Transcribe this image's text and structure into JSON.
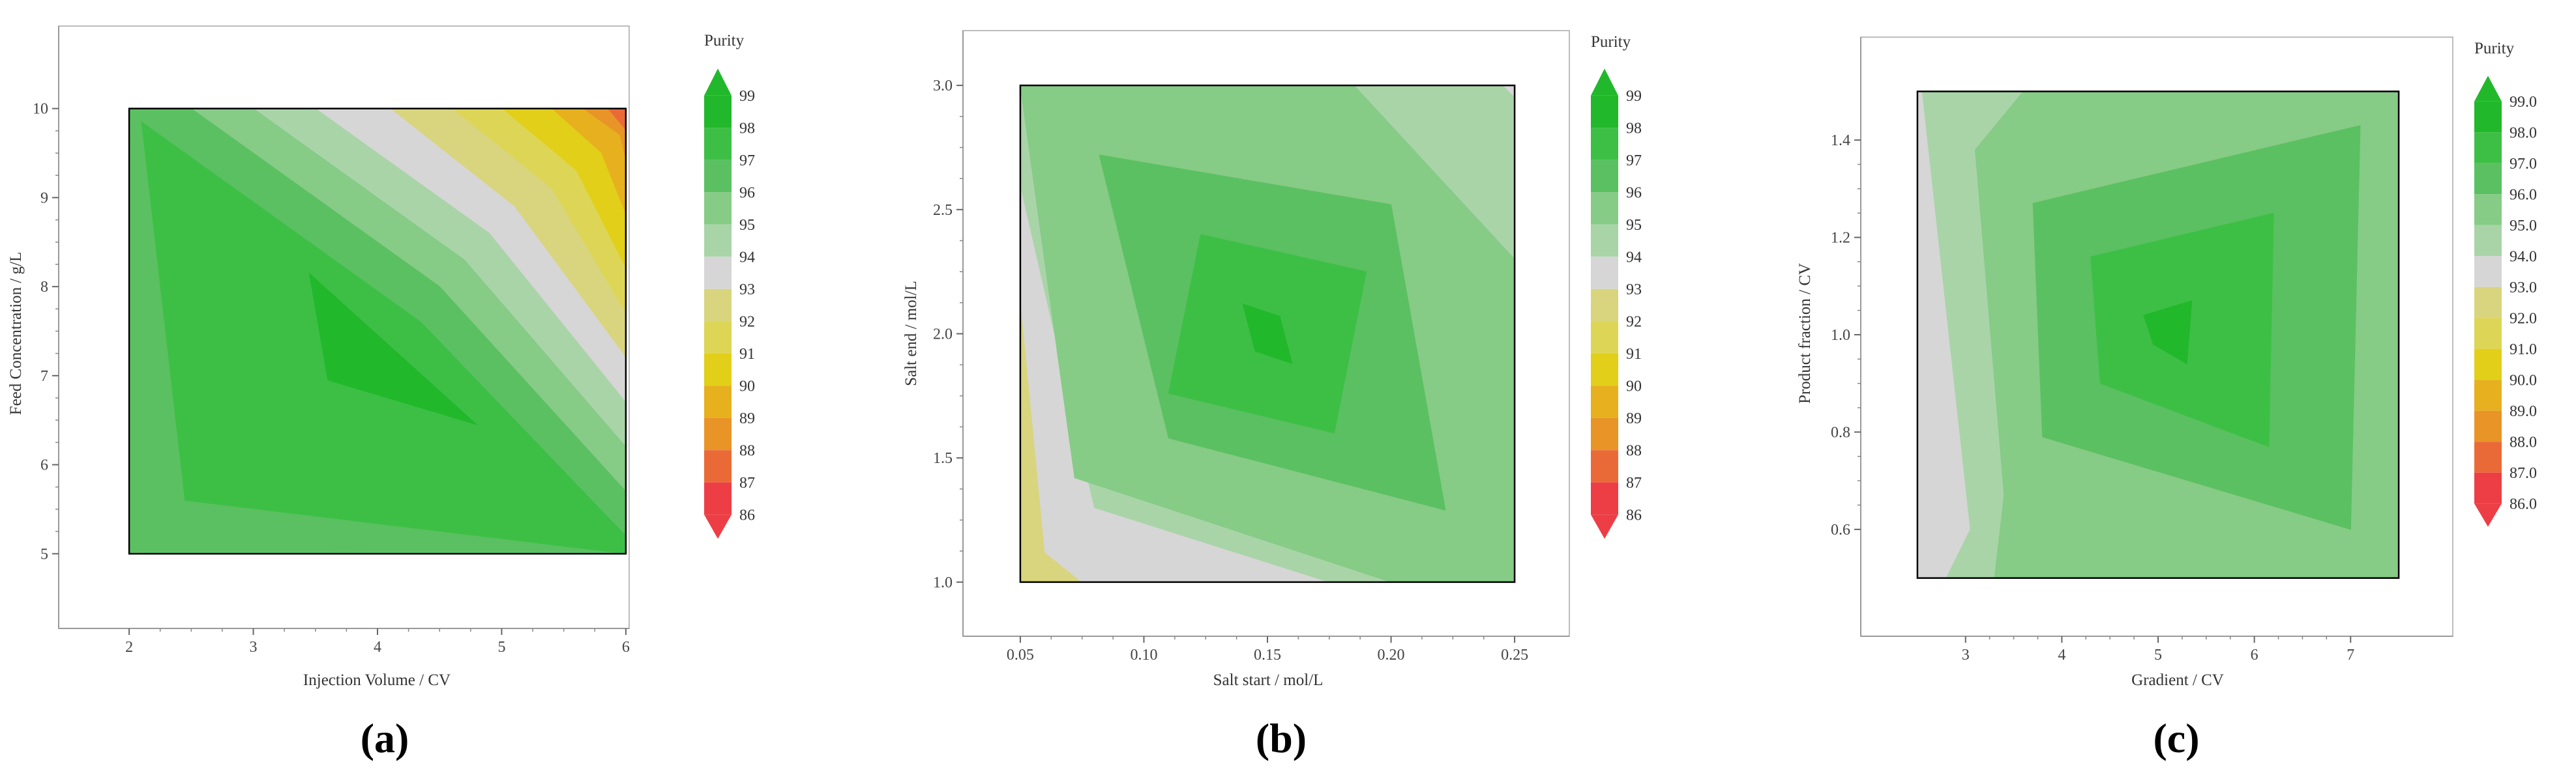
{
  "chart_data": [
    {
      "type": "contour",
      "panel_label": "(a)",
      "xlabel": "Injection Volume / CV",
      "ylabel": "Feed Concentration / g/L",
      "x_ticks": [
        "2",
        "3",
        "4",
        "5",
        "6"
      ],
      "y_ticks": [
        "5",
        "6",
        "7",
        "8",
        "9",
        "10"
      ],
      "xlim": [
        1.8,
        6.2
      ],
      "ylim": [
        4.6,
        10.4
      ],
      "data_region": {
        "x": [
          2,
          6
        ],
        "y": [
          5,
          10
        ]
      },
      "legend_title": "Purity",
      "legend_ticks": [
        "99",
        "98",
        "97",
        "96",
        "95",
        "94",
        "93",
        "92",
        "91",
        "90",
        "89",
        "88",
        "87",
        "86"
      ],
      "max_point": {
        "x": 4.0,
        "y": 7.2,
        "purity": 98.3
      },
      "contour_bands": [
        {
          "level": 98,
          "polygon": [
            [
              3.45,
              8.15
            ],
            [
              4.8,
              6.45
            ],
            [
              3.6,
              6.95
            ]
          ]
        },
        {
          "level": 97,
          "polygon": [
            [
              2.1,
              9.85
            ],
            [
              4.35,
              7.6
            ],
            [
              6.0,
              5.2
            ],
            [
              6.0,
              5.0
            ],
            [
              2.45,
              5.6
            ]
          ]
        },
        {
          "level": 96,
          "polygon": [
            [
              2,
              10
            ],
            [
              2.5,
              10
            ],
            [
              4.5,
              8
            ],
            [
              6.0,
              5.7
            ],
            [
              6.0,
              5.2
            ],
            [
              4.5,
              7.3
            ],
            [
              2.1,
              9.85
            ],
            [
              2.45,
              5.6
            ],
            [
              6.0,
              5.0
            ],
            [
              4.0,
              5.0
            ],
            [
              2.0,
              5.2
            ]
          ]
        },
        {
          "level": 95,
          "polygon": [
            [
              2.5,
              10
            ],
            [
              3.0,
              10
            ],
            [
              4.7,
              8.3
            ],
            [
              6.0,
              6.2
            ],
            [
              6.0,
              5.7
            ],
            [
              4.5,
              8
            ]
          ]
        },
        {
          "level": 94,
          "polygon": [
            [
              3.0,
              10
            ],
            [
              3.5,
              10
            ],
            [
              4.9,
              8.6
            ],
            [
              6.0,
              6.7
            ],
            [
              6.0,
              6.2
            ],
            [
              4.7,
              8.3
            ]
          ]
        },
        {
          "level": 93,
          "polygon": [
            [
              3.5,
              10
            ],
            [
              4.1,
              10
            ],
            [
              5.1,
              8.9
            ],
            [
              6.0,
              7.2
            ],
            [
              6.0,
              6.7
            ],
            [
              4.9,
              8.6
            ]
          ]
        },
        {
          "level": 92,
          "polygon": [
            [
              4.1,
              10
            ],
            [
              4.6,
              10
            ],
            [
              5.4,
              9.1
            ],
            [
              6.0,
              7.7
            ],
            [
              6.0,
              7.2
            ],
            [
              5.1,
              8.9
            ]
          ]
        },
        {
          "level": 91,
          "polygon": [
            [
              4.6,
              10
            ],
            [
              5.0,
              10
            ],
            [
              5.6,
              9.3
            ],
            [
              6.0,
              8.2
            ],
            [
              6.0,
              7.7
            ],
            [
              5.4,
              9.1
            ]
          ]
        },
        {
          "level": 90,
          "polygon": [
            [
              5.0,
              10
            ],
            [
              5.4,
              10
            ],
            [
              5.8,
              9.5
            ],
            [
              6.0,
              8.8
            ],
            [
              6.0,
              8.2
            ],
            [
              5.6,
              9.3
            ]
          ]
        },
        {
          "level": 89,
          "polygon": [
            [
              5.4,
              10
            ],
            [
              5.65,
              10
            ],
            [
              5.95,
              9.7
            ],
            [
              6.0,
              9.4
            ],
            [
              6.0,
              8.8
            ],
            [
              5.8,
              9.5
            ]
          ]
        },
        {
          "level": 88,
          "polygon": [
            [
              5.65,
              10
            ],
            [
              5.85,
              10
            ],
            [
              6.0,
              9.75
            ],
            [
              6.0,
              9.4
            ],
            [
              5.95,
              9.7
            ]
          ]
        },
        {
          "level": 87,
          "polygon": [
            [
              5.85,
              10
            ],
            [
              6.0,
              10
            ],
            [
              6.0,
              9.75
            ]
          ]
        }
      ]
    },
    {
      "type": "contour",
      "panel_label": "(b)",
      "xlabel": "Salt start / mol/L",
      "ylabel": "Salt end / mol/L",
      "x_ticks": [
        "0.05",
        "0.10",
        "0.15",
        "0.20",
        "0.25"
      ],
      "y_ticks": [
        "1.0",
        "1.5",
        "2.0",
        "2.5",
        "3.0"
      ],
      "xlim": [
        0.04,
        0.26
      ],
      "ylim": [
        0.9,
        3.1
      ],
      "data_region": {
        "x": [
          0.05,
          0.25
        ],
        "y": [
          1.0,
          3.0
        ]
      },
      "legend_title": "Purity",
      "legend_ticks": [
        "99",
        "98",
        "97",
        "96",
        "95",
        "94",
        "93",
        "92",
        "91",
        "90",
        "89",
        "88",
        "87",
        "86"
      ],
      "max_point": {
        "x": 0.15,
        "y": 2.0,
        "purity": 98.1
      },
      "contour_bands": [
        {
          "level": 98,
          "polygon": [
            [
              0.14,
              2.12
            ],
            [
              0.155,
              2.07
            ],
            [
              0.16,
              1.88
            ],
            [
              0.145,
              1.93
            ]
          ]
        },
        {
          "level": 97,
          "polygon": [
            [
              0.123,
              2.4
            ],
            [
              0.19,
              2.25
            ],
            [
              0.177,
              1.6
            ],
            [
              0.11,
              1.76
            ]
          ]
        },
        {
          "level": 96,
          "polygon": [
            [
              0.082,
              2.72
            ],
            [
              0.2,
              2.52
            ],
            [
              0.222,
              1.29
            ],
            [
              0.11,
              1.58
            ]
          ]
        },
        {
          "level": 95,
          "polygon": [
            [
              0.05,
              3.0
            ],
            [
              0.185,
              3.0
            ],
            [
              0.25,
              2.3
            ],
            [
              0.25,
              1.0
            ],
            [
              0.2,
              1.0
            ],
            [
              0.072,
              1.42
            ]
          ]
        },
        {
          "level": 94,
          "polygon": [
            [
              0.05,
              3.0
            ],
            [
              0.05,
              2.6
            ],
            [
              0.08,
              1.3
            ],
            [
              0.175,
              1.0
            ],
            [
              0.2,
              1.0
            ]
          ]
        },
        {
          "level": 93,
          "polygon": [
            [
              0.05,
              2.6
            ],
            [
              0.05,
              2.15
            ],
            [
              0.06,
              1.12
            ],
            [
              0.075,
              1.0
            ],
            [
              0.175,
              1.0
            ],
            [
              0.08,
              1.3
            ]
          ]
        },
        {
          "level": 92,
          "polygon": [
            [
              0.05,
              2.15
            ],
            [
              0.05,
              1.0
            ],
            [
              0.075,
              1.0
            ],
            [
              0.06,
              1.12
            ]
          ]
        },
        {
          "level": 94,
          "polygon": [
            [
              0.185,
              3.0
            ],
            [
              0.245,
              3.0
            ],
            [
              0.25,
              2.95
            ],
            [
              0.25,
              2.3
            ]
          ]
        },
        {
          "level": 93,
          "polygon": [
            [
              0.245,
              3.0
            ],
            [
              0.25,
              3.0
            ],
            [
              0.25,
              2.95
            ]
          ]
        }
      ]
    },
    {
      "type": "contour",
      "panel_label": "(c)",
      "xlabel": "Gradient / CV",
      "ylabel": "Product fraction / CV",
      "x_ticks": [
        "3",
        "4",
        "5",
        "6",
        "7"
      ],
      "y_ticks": [
        "0.6",
        "0.8",
        "1.0",
        "1.2",
        "1.4"
      ],
      "xlim": [
        2.25,
        7.75
      ],
      "ylim": [
        0.45,
        1.55
      ],
      "data_region": {
        "x": [
          2.5,
          7.5
        ],
        "y": [
          0.5,
          1.5
        ]
      },
      "legend_title": "Purity",
      "legend_ticks": [
        "99.0",
        "98.0",
        "97.0",
        "96.0",
        "95.0",
        "94.0",
        "93.0",
        "92.0",
        "91.0",
        "90.0",
        "89.0",
        "88.0",
        "87.0",
        "86.0"
      ],
      "max_point": {
        "x": 5.0,
        "y": 1.0,
        "purity": 98.2
      },
      "contour_bands": [
        {
          "level": 98,
          "polygon": [
            [
              4.85,
              1.04
            ],
            [
              5.35,
              1.07
            ],
            [
              5.3,
              0.94
            ],
            [
              4.95,
              0.98
            ]
          ]
        },
        {
          "level": 97,
          "polygon": [
            [
              4.3,
              1.16
            ],
            [
              6.2,
              1.25
            ],
            [
              6.15,
              0.77
            ],
            [
              4.4,
              0.9
            ]
          ]
        },
        {
          "level": 96,
          "polygon": [
            [
              3.7,
              1.27
            ],
            [
              7.1,
              1.43
            ],
            [
              7.0,
              0.6
            ],
            [
              3.8,
              0.79
            ]
          ]
        },
        {
          "level": 95,
          "polygon": [
            [
              3.1,
              1.38
            ],
            [
              3.6,
              1.5
            ],
            [
              7.5,
              1.5
            ],
            [
              7.5,
              0.5
            ],
            [
              3.3,
              0.5
            ],
            [
              3.4,
              0.67
            ]
          ]
        },
        {
          "level": 94,
          "polygon": [
            [
              2.55,
              1.5
            ],
            [
              3.6,
              1.5
            ],
            [
              3.1,
              1.38
            ],
            [
              3.4,
              0.67
            ],
            [
              3.3,
              0.5
            ],
            [
              2.8,
              0.5
            ],
            [
              3.05,
              0.6
            ]
          ]
        },
        {
          "level": 93,
          "polygon": [
            [
              2.5,
              1.5
            ],
            [
              2.55,
              1.5
            ],
            [
              3.05,
              0.6
            ],
            [
              2.8,
              0.5
            ],
            [
              2.5,
              0.5
            ]
          ]
        },
        {
          "level": 92,
          "polygon": [
            [
              2.5,
              1.05
            ],
            [
              2.7,
              0.75
            ],
            [
              2.7,
              0.5
            ],
            [
              2.5,
              0.5
            ]
          ]
        }
      ]
    }
  ],
  "colors": {
    "99": "#22b82b",
    "98": "#22b82b",
    "97": "#3dbf46",
    "96": "#5bc061",
    "95": "#86cb86",
    "94": "#a9d4a8",
    "93": "#d6d6d6",
    "92": "#d8d57e",
    "91": "#ddd556",
    "90": "#e1cf19",
    "89": "#e6b01e",
    "88": "#e89427",
    "87": "#ea6a37",
    "86": "#ed3e46"
  }
}
